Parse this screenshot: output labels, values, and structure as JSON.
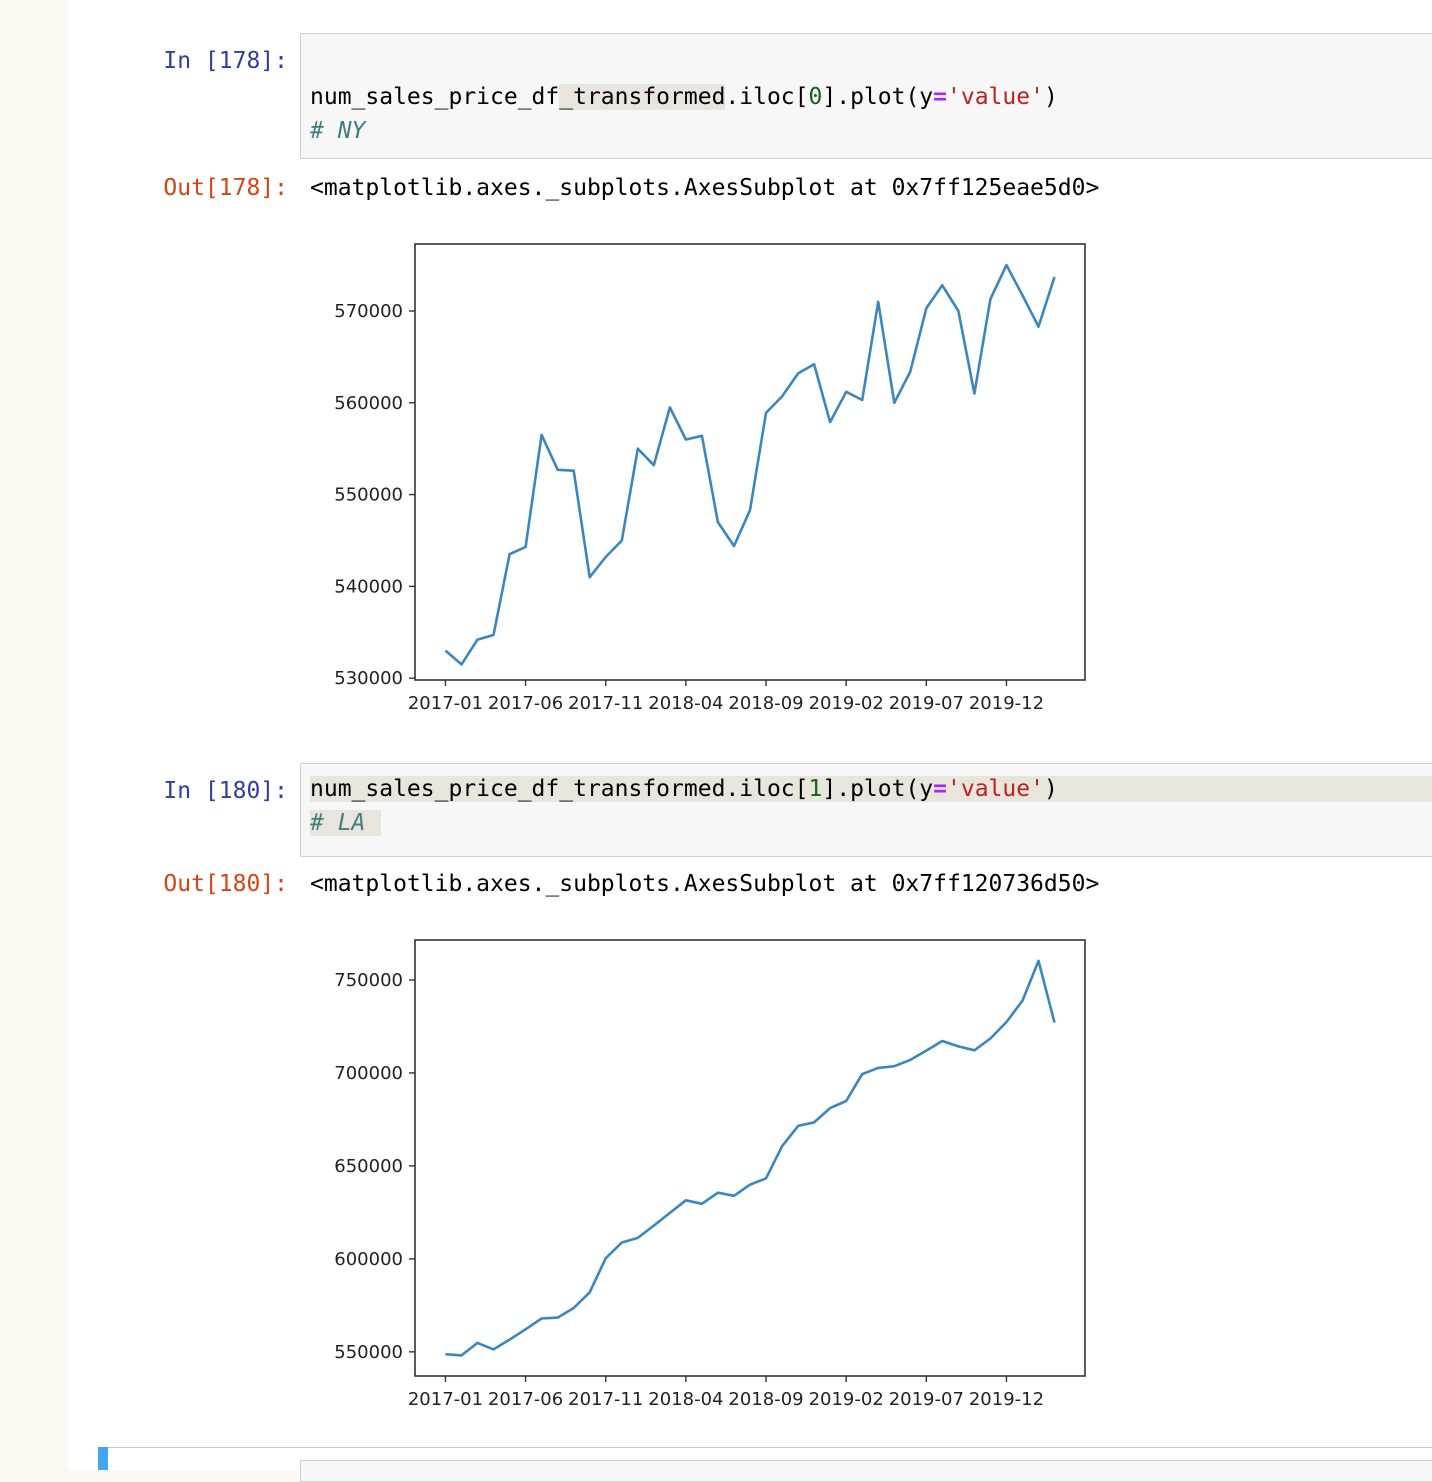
{
  "cells": [
    {
      "in_prompt": "In [178]:",
      "code": {
        "pre": "num_sales_price_df",
        "pre_hl": "_transformed",
        "call_a": ".iloc[",
        "index": "0",
        "call_b": "].plot(y",
        "eq": "=",
        "str": "'value'",
        "close": ")",
        "comment": "# NY"
      },
      "out_prompt": "Out[178]:",
      "out_text": "<matplotlib.axes._subplots.AxesSubplot at 0x7ff125eae5d0>"
    },
    {
      "in_prompt": "In [180]:",
      "code": {
        "pre": "num_sales_price_df",
        "pre_hl": "_transformed",
        "call_a": ".iloc[",
        "index": "1",
        "call_b": "].plot(y",
        "eq": "=",
        "str": "'value'",
        "close": ")",
        "comment": "# LA"
      },
      "out_prompt": "Out[180]:",
      "out_text": "<matplotlib.axes._subplots.AxesSubplot at 0x7ff120736d50>"
    }
  ],
  "chart_data": [
    {
      "type": "line",
      "title": "",
      "xlabel": "",
      "ylabel": "",
      "x_tick_labels": [
        "2017-01",
        "2017-06",
        "2017-11",
        "2018-04",
        "2018-09",
        "2019-02",
        "2019-07",
        "2019-12"
      ],
      "y_tick_labels": [
        "530000",
        "540000",
        "550000",
        "560000",
        "570000"
      ],
      "y_ticks": [
        530000,
        540000,
        550000,
        560000,
        570000
      ],
      "ylim": [
        529800,
        577300
      ],
      "x_index_range": [
        -1.9,
        39.9
      ],
      "grid": false,
      "legend": "none",
      "color": "#3a87c0",
      "series": [
        {
          "values": [
            533000,
            531500,
            534200,
            534700,
            543500,
            544300,
            556500,
            552700,
            552600,
            541000,
            543200,
            545000,
            555000,
            553200,
            559500,
            556000,
            556400,
            547000,
            544400,
            548300,
            558900,
            560700,
            563200,
            564200,
            557900,
            561200,
            560300,
            571000,
            560000,
            563400,
            570300,
            572800,
            570000,
            561000,
            571300,
            575000,
            571700,
            568300,
            573700
          ]
        }
      ]
    },
    {
      "type": "line",
      "title": "",
      "xlabel": "",
      "ylabel": "",
      "x_tick_labels": [
        "2017-01",
        "2017-06",
        "2017-11",
        "2018-04",
        "2018-09",
        "2019-02",
        "2019-07",
        "2019-12"
      ],
      "y_tick_labels": [
        "550000",
        "600000",
        "650000",
        "700000",
        "750000"
      ],
      "y_ticks": [
        550000,
        600000,
        650000,
        700000,
        750000
      ],
      "ylim": [
        537000,
        771500
      ],
      "x_index_range": [
        -1.9,
        39.9
      ],
      "grid": false,
      "legend": "none",
      "color": "#3a87c0",
      "series": [
        {
          "values": [
            548700,
            548100,
            554800,
            551300,
            556600,
            562100,
            567900,
            568400,
            573600,
            582000,
            600300,
            608800,
            611300,
            617900,
            624700,
            631500,
            629600,
            635600,
            633900,
            639900,
            643300,
            660600,
            671500,
            673400,
            681100,
            684900,
            699400,
            702700,
            703600,
            707000,
            712000,
            717200,
            714300,
            712200,
            718500,
            727400,
            738900,
            760300,
            727100
          ]
        }
      ]
    }
  ]
}
